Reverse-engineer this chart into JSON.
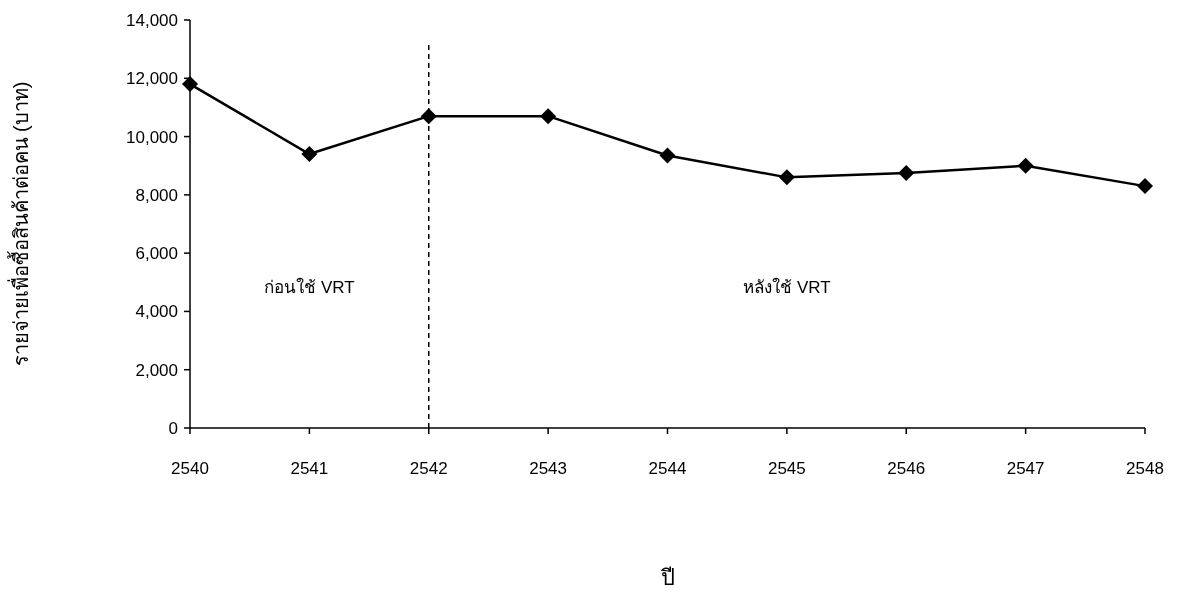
{
  "chart_data": {
    "type": "line",
    "xlabel": "ปี",
    "ylabel": "รายจ่ายเพื่อซื้อสินค้าต่อคน (บาท)",
    "categories": [
      "2540",
      "2541",
      "2542",
      "2543",
      "2544",
      "2545",
      "2546",
      "2547",
      "2548"
    ],
    "series": [
      {
        "color": "#000000",
        "values": [
          11800,
          9400,
          10700,
          10700,
          9350,
          8600,
          8750,
          9000,
          8300
        ]
      }
    ],
    "ylim": [
      0,
      14000
    ],
    "yticks": [
      {
        "value": 0,
        "label": "0"
      },
      {
        "value": 2000,
        "label": "2,000"
      },
      {
        "value": 4000,
        "label": "4,000"
      },
      {
        "value": 6000,
        "label": "6,000"
      },
      {
        "value": 8000,
        "label": "8,000"
      },
      {
        "value": 10000,
        "label": "10,000"
      },
      {
        "value": 12000,
        "label": "12,000"
      },
      {
        "value": 14000,
        "label": "14,000"
      }
    ],
    "ref_lines": [
      {
        "axis": "x",
        "value": "2542",
        "color": "#000000",
        "line_style": "dashed"
      }
    ],
    "annotations": [
      "ก่อนใช้ VRT",
      "หลังใช้ VRT"
    ],
    "marker": "diamond",
    "line_style": "solid",
    "grid": false
  }
}
